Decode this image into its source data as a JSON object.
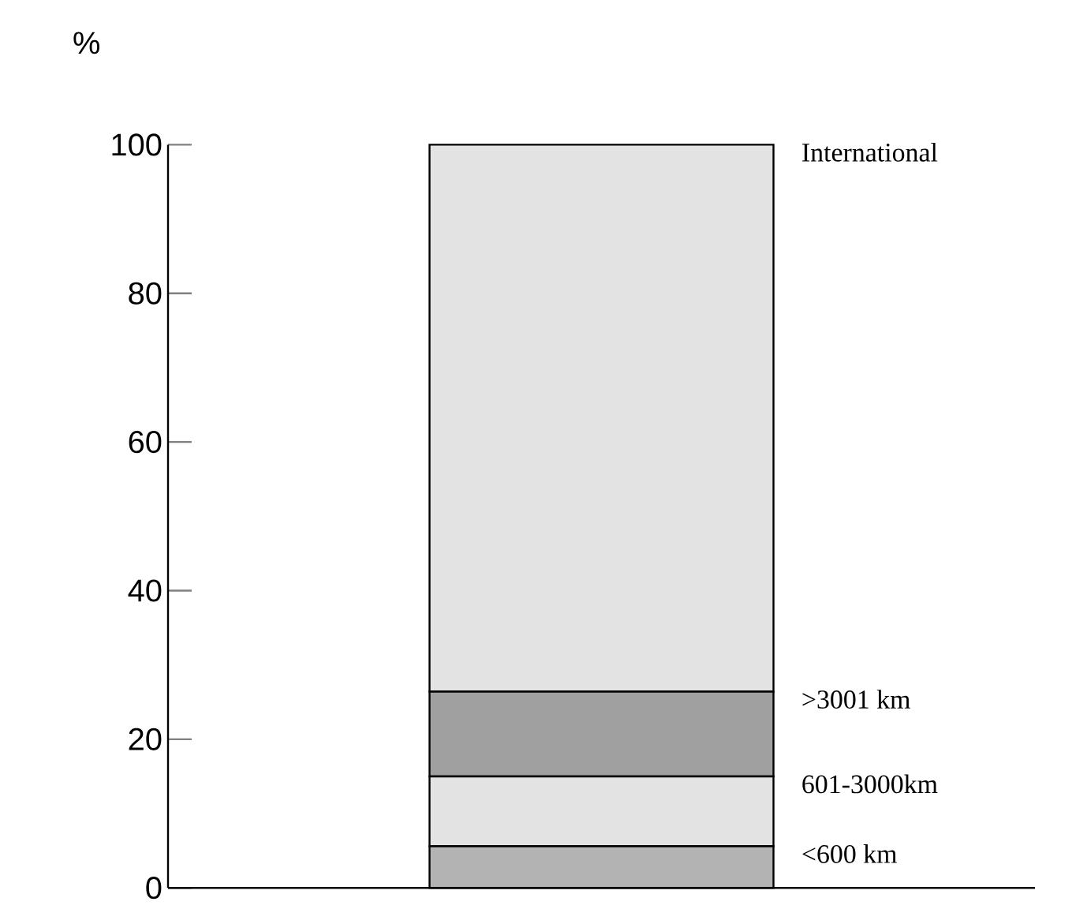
{
  "chart_data": {
    "type": "bar",
    "stacked": true,
    "categories": [
      null
    ],
    "ylabel": "%",
    "ylim": [
      0,
      100
    ],
    "yticks": [
      0,
      20,
      40,
      60,
      80,
      100
    ],
    "tick_labels": "y",
    "series": [
      {
        "name": "<600 km",
        "color": "#b3b3b3",
        "values": [
          5.6
        ]
      },
      {
        "name": "601-3000km",
        "color": "#e3e3e3",
        "values": [
          9.4
        ]
      },
      {
        "name": ">3001 km",
        "color": "#a0a0a0",
        "values": [
          11.4
        ]
      },
      {
        "name": "International",
        "color": "#e3e3e3",
        "values": [
          73.6
        ]
      }
    ]
  }
}
